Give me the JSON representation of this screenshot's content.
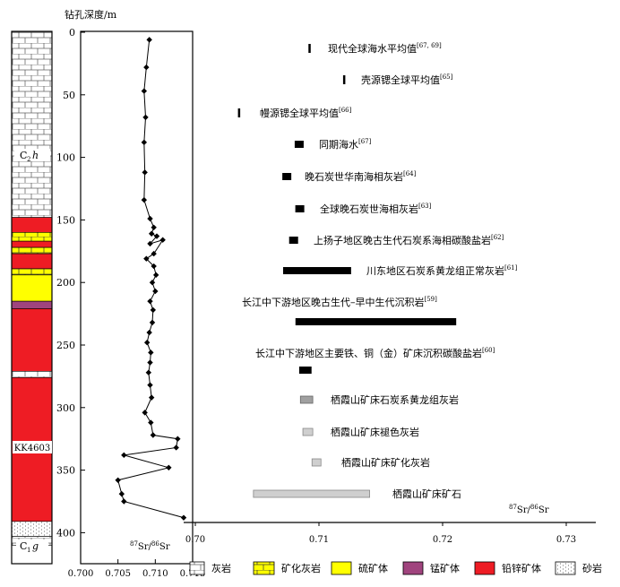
{
  "colors": {
    "limestone": "#ffffff",
    "mineralized_limestone": "#ffff00",
    "pyrite_ore": "#ffff00",
    "manganese_ore": "#a0447e",
    "lead_zinc_ore": "#ee1c24",
    "sandstone": "#ffffff",
    "bar_black": "#000000",
    "bar_gray_dark": "#a0a0a0",
    "bar_gray_light": "#cfcfcf"
  },
  "column": {
    "depth_title": "钻孔深度/m",
    "formation_upper": "C",
    "formation_upper_sub": "2",
    "formation_upper_suffix": "h",
    "formation_lower": "C",
    "formation_lower_sub": "1",
    "formation_lower_suffix": "g",
    "borehole": "KK4603",
    "layers": [
      {
        "top": 0,
        "bottom": 148,
        "lith": "limestone"
      },
      {
        "top": 148,
        "bottom": 160,
        "lith": "lead_zinc_ore"
      },
      {
        "top": 160,
        "bottom": 167,
        "lith": "mineralized_limestone"
      },
      {
        "top": 167,
        "bottom": 172,
        "lith": "lead_zinc_ore"
      },
      {
        "top": 172,
        "bottom": 177,
        "lith": "mineralized_limestone"
      },
      {
        "top": 177,
        "bottom": 189,
        "lith": "lead_zinc_ore"
      },
      {
        "top": 189,
        "bottom": 194,
        "lith": "mineralized_limestone"
      },
      {
        "top": 194,
        "bottom": 215,
        "lith": "pyrite_ore"
      },
      {
        "top": 215,
        "bottom": 221,
        "lith": "manganese_ore"
      },
      {
        "top": 221,
        "bottom": 271,
        "lith": "lead_zinc_ore"
      },
      {
        "top": 271,
        "bottom": 276,
        "lith": "limestone"
      },
      {
        "top": 276,
        "bottom": 391,
        "lith": "lead_zinc_ore"
      },
      {
        "top": 391,
        "bottom": 403,
        "lith": "sandstone"
      },
      {
        "top": 403,
        "bottom": 410,
        "lith": "limestone"
      }
    ]
  },
  "legend": [
    {
      "label": "灰岩",
      "lith": "limestone"
    },
    {
      "label": "矿化灰岩",
      "lith": "mineralized_limestone"
    },
    {
      "label": "硫矿体",
      "lith": "pyrite_ore"
    },
    {
      "label": "锰矿体",
      "lith": "manganese_ore"
    },
    {
      "label": "铅锌矿体",
      "lith": "lead_zinc_ore"
    },
    {
      "label": "砂岩",
      "lith": "sandstone"
    }
  ],
  "chart_data": [
    {
      "type": "line",
      "title": "",
      "ylabel": "钻孔深度/m",
      "xlabel_sup": "87",
      "xlabel_main": "Sr/",
      "xlabel_sup2": "86",
      "xlabel_end": "Sr",
      "xlim": [
        0.7,
        0.715
      ],
      "ylim": [
        0,
        410
      ],
      "y_reversed": true,
      "x_ticks": [
        "0.700",
        "0.705",
        "0.710",
        "0.715"
      ],
      "x_tick_values": [
        0.7,
        0.705,
        0.71,
        0.715
      ],
      "y_ticks": [
        "0",
        "50",
        "100",
        "150",
        "200",
        "250",
        "300",
        "350",
        "400"
      ],
      "y_tick_values": [
        0,
        50,
        100,
        150,
        200,
        250,
        300,
        350,
        400
      ],
      "grid": false,
      "points": [
        {
          "sr": 0.7092,
          "depth": 6
        },
        {
          "sr": 0.7088,
          "depth": 28
        },
        {
          "sr": 0.7085,
          "depth": 47
        },
        {
          "sr": 0.7087,
          "depth": 68
        },
        {
          "sr": 0.7085,
          "depth": 88
        },
        {
          "sr": 0.7086,
          "depth": 112
        },
        {
          "sr": 0.7085,
          "depth": 134
        },
        {
          "sr": 0.7093,
          "depth": 149
        },
        {
          "sr": 0.7098,
          "depth": 156
        },
        {
          "sr": 0.7095,
          "depth": 161
        },
        {
          "sr": 0.7102,
          "depth": 163
        },
        {
          "sr": 0.7093,
          "depth": 169
        },
        {
          "sr": 0.711,
          "depth": 166
        },
        {
          "sr": 0.7098,
          "depth": 177
        },
        {
          "sr": 0.7088,
          "depth": 181
        },
        {
          "sr": 0.7098,
          "depth": 187
        },
        {
          "sr": 0.7101,
          "depth": 194
        },
        {
          "sr": 0.7096,
          "depth": 200
        },
        {
          "sr": 0.71,
          "depth": 207
        },
        {
          "sr": 0.7093,
          "depth": 215
        },
        {
          "sr": 0.7097,
          "depth": 222
        },
        {
          "sr": 0.7096,
          "depth": 232
        },
        {
          "sr": 0.7092,
          "depth": 240
        },
        {
          "sr": 0.7089,
          "depth": 248
        },
        {
          "sr": 0.7094,
          "depth": 256
        },
        {
          "sr": 0.7093,
          "depth": 264
        },
        {
          "sr": 0.7091,
          "depth": 272
        },
        {
          "sr": 0.7093,
          "depth": 282
        },
        {
          "sr": 0.7095,
          "depth": 292
        },
        {
          "sr": 0.7086,
          "depth": 304
        },
        {
          "sr": 0.7094,
          "depth": 312
        },
        {
          "sr": 0.7097,
          "depth": 322
        },
        {
          "sr": 0.713,
          "depth": 325
        },
        {
          "sr": 0.7128,
          "depth": 332
        },
        {
          "sr": 0.7058,
          "depth": 338
        },
        {
          "sr": 0.7118,
          "depth": 348
        },
        {
          "sr": 0.705,
          "depth": 358
        },
        {
          "sr": 0.7055,
          "depth": 369
        },
        {
          "sr": 0.7058,
          "depth": 375
        },
        {
          "sr": 0.7138,
          "depth": 388
        }
      ]
    },
    {
      "type": "bar",
      "title": "",
      "xlabel_sup": "87",
      "xlabel_main": "Sr/",
      "xlabel_sup2": "86",
      "xlabel_end": "Sr",
      "xlim": [
        0.699,
        0.7335
      ],
      "x_ticks": [
        "0.70",
        "0.71",
        "0.72",
        "0.73"
      ],
      "x_tick_values": [
        0.7,
        0.71,
        0.72,
        0.73
      ],
      "grid": false,
      "ranges": [
        {
          "label": "现代全球海水平均值",
          "ref": "[67, 69]",
          "min": 0.70915,
          "max": 0.70925,
          "style": "thin"
        },
        {
          "label": "壳源锶全球平均值",
          "ref": "[65]",
          "min": 0.71195,
          "max": 0.71205,
          "style": "thin"
        },
        {
          "label": "幔源锶全球平均值",
          "ref": "[66]",
          "min": 0.70345,
          "max": 0.70355,
          "style": "thin"
        },
        {
          "label": "同期海水",
          "ref": "[67]",
          "min": 0.7081,
          "max": 0.7087,
          "style": "black"
        },
        {
          "label": "晚石炭世华南海相灰岩",
          "ref": "[64]",
          "min": 0.7072,
          "max": 0.7076,
          "style": "black"
        },
        {
          "label": "全球晚石炭世海相灰岩",
          "ref": "[63]",
          "min": 0.7082,
          "max": 0.7087,
          "style": "black"
        },
        {
          "label": "上扬子地区晚古生代石炭系海相碳酸盐岩",
          "ref": "[62]",
          "min": 0.7077,
          "max": 0.7082,
          "style": "black"
        },
        {
          "label": "川东地区石炭系黄龙组正常灰岩",
          "ref": "[61]",
          "min": 0.7071,
          "max": 0.7126,
          "style": "black"
        },
        {
          "label": "长江中下游地区晚古生代–早中生代沉积岩",
          "ref": "[59]",
          "min": 0.7081,
          "max": 0.7211,
          "style": "black"
        },
        {
          "label": "长江中下游地区主要铁、铜（金）矿床沉积碳酸盐岩",
          "ref": "[60]",
          "min": 0.7084,
          "max": 0.7094,
          "style": "black"
        },
        {
          "label": "栖霞山矿床石炭系黄龙组灰岩",
          "ref": "",
          "min": 0.7085,
          "max": 0.7095,
          "style": "gray_dark"
        },
        {
          "label": "栖霞山矿床褪色灰岩",
          "ref": "",
          "min": 0.7087,
          "max": 0.7095,
          "style": "gray_light"
        },
        {
          "label": "栖霞山矿床矿化灰岩",
          "ref": "",
          "min": 0.7095,
          "max": 0.7101,
          "style": "gray_light"
        },
        {
          "label": "栖霞山矿床矿石",
          "ref": "",
          "min": 0.7047,
          "max": 0.7141,
          "style": "gray_light"
        }
      ]
    }
  ]
}
